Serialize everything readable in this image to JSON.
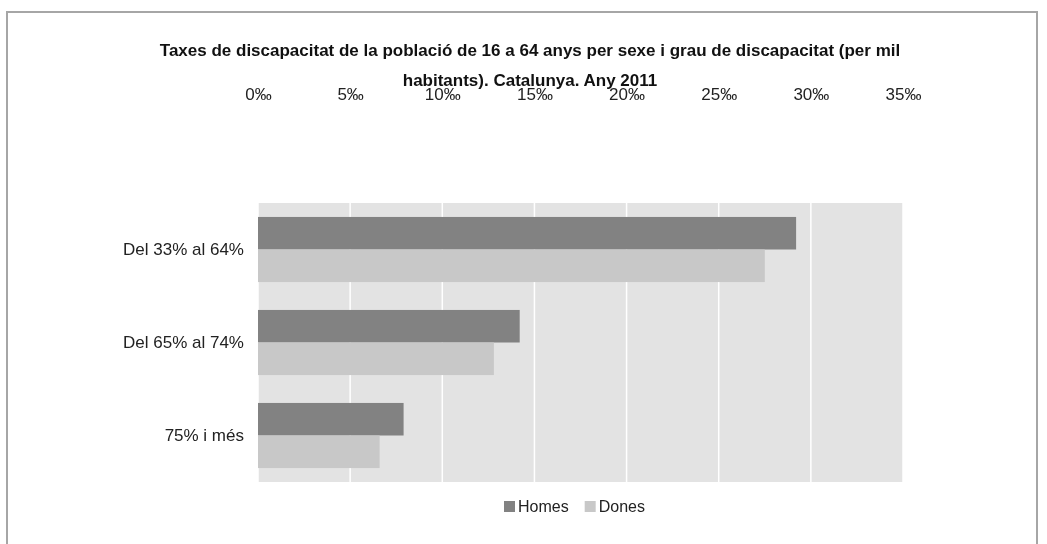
{
  "chart_data": {
    "type": "bar",
    "orientation": "horizontal",
    "title": "Taxes de discapacitat de la població de 16 a 64 anys per sexe i grau de discapacitat (per mil habitants). Catalunya. Any 2011",
    "categories": [
      "Del 33% al 64%",
      "Del 65% al 74%",
      "75% i més"
    ],
    "series": [
      {
        "name": "Homes",
        "color": "#828282",
        "values": [
          29.2,
          14.2,
          7.9
        ]
      },
      {
        "name": "Dones",
        "color": "#c8c8c8",
        "values": [
          27.5,
          12.8,
          6.6
        ]
      }
    ],
    "xlim": [
      0,
      35
    ],
    "xticks": [
      {
        "value": 0,
        "label": "0‰"
      },
      {
        "value": 5,
        "label": "5‰"
      },
      {
        "value": 10,
        "label": "10‰"
      },
      {
        "value": 15,
        "label": "15‰"
      },
      {
        "value": 20,
        "label": "20‰"
      },
      {
        "value": 25,
        "label": "25‰"
      },
      {
        "value": 30,
        "label": "30‰"
      },
      {
        "value": 35,
        "label": "35‰"
      }
    ],
    "grid": "x",
    "legend": "bottom"
  }
}
